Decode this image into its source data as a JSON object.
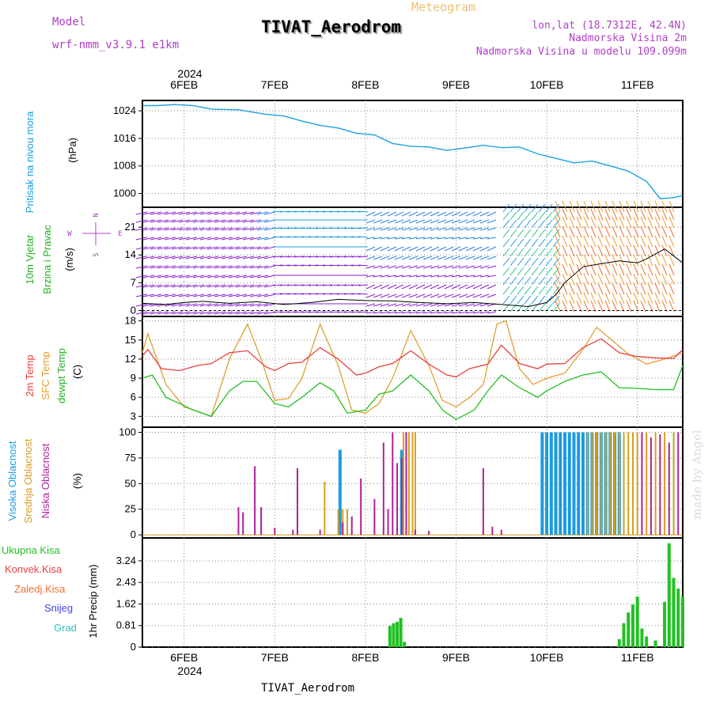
{
  "header": {
    "title": "TIVAT_Aerodrom",
    "subtitle": "Meteogram",
    "model_label": "Model",
    "model_value": "wrf-nmm_v3.9.1  e1km",
    "location": "lon,lat (18.7312E, 42.4N)",
    "altitude": "Nadmorska Visina 2m",
    "model_altitude": "Nadmorska Visina u modelu 109.099m",
    "year": "2024",
    "footer": "TIVAT_Aerodrom",
    "watermark": "made by Angel"
  },
  "colors": {
    "pressure": "#1ba1e2",
    "temp2m": "#e84040",
    "sfc": "#e0a030",
    "dewpt": "#22c022",
    "high_cloud": "#1a9be0",
    "mid_cloud": "#d4a020",
    "low_cloud": "#b0209a",
    "wind_label": "#22b022",
    "legend_purple": "#b040c8"
  },
  "x_axis": {
    "day_labels": [
      "6FEB",
      "7FEB",
      "8FEB",
      "9FEB",
      "10FEB",
      "11FEB"
    ],
    "day_values": [
      1,
      2,
      3,
      4,
      5,
      6
    ],
    "range": [
      0.54,
      6.5
    ]
  },
  "panels": {
    "pressure": {
      "labels": [
        "Pritisak na nivou mora",
        "(hPa)"
      ],
      "ticks": [
        "1024",
        "1016",
        "1008",
        "1000"
      ],
      "tick_values": [
        1024,
        1016,
        1008,
        1000
      ],
      "ylim": [
        996,
        1027
      ]
    },
    "wind": {
      "labels": [
        "10m Vjetar",
        "Brzina i Pravac",
        "(m/s)"
      ],
      "compass": [
        "N",
        "E",
        "S",
        "W"
      ],
      "ticks": [
        "21",
        "14",
        "7",
        "0"
      ],
      "tick_values": [
        21,
        14,
        7,
        0
      ],
      "ylim": [
        -1.5,
        26
      ]
    },
    "temp": {
      "labels": [
        "2m Temp",
        "SFC Temp",
        "dewpt Temp",
        "(C)"
      ],
      "ticks": [
        "18",
        "15",
        "12",
        "9",
        "6",
        "3"
      ],
      "tick_values": [
        18,
        15,
        12,
        9,
        6,
        3
      ],
      "ylim": [
        1.3,
        18.7
      ]
    },
    "cloud": {
      "labels": [
        "Visoka Oblacnost",
        "Srednja Oblacnost",
        "Niska Oblacnost",
        "(%)"
      ],
      "ticks": [
        "100",
        "75",
        "50",
        "25",
        "0"
      ],
      "tick_values": [
        100,
        75,
        50,
        25,
        0
      ],
      "ylim": [
        -3,
        105
      ]
    },
    "precip": {
      "labels": [
        "Ukupna Kisa",
        "Konvek.Kisa",
        "Zaledj.Kisa",
        "Snijeg",
        "Grad",
        "1hr Precip (mm)"
      ],
      "ticks": [
        "3.24",
        "2.43",
        "1.62",
        "0.81",
        "0"
      ],
      "tick_values": [
        3.24,
        2.43,
        1.62,
        0.81,
        0
      ],
      "ylim": [
        0,
        4.1
      ]
    }
  },
  "chart_data": {
    "type": "line",
    "title": "Meteogram",
    "x_unit": "day of February 2024",
    "pressure": {
      "x": [
        0.54,
        0.7,
        0.9,
        1.1,
        1.3,
        1.6,
        1.9,
        2.1,
        2.3,
        2.5,
        2.7,
        2.9,
        3.1,
        3.3,
        3.5,
        3.7,
        3.9,
        4.1,
        4.3,
        4.5,
        4.7,
        4.9,
        5.1,
        5.3,
        5.5,
        5.7,
        5.9,
        6.1,
        6.25,
        6.4,
        6.5
      ],
      "values": [
        1025.5,
        1025.5,
        1025.8,
        1025.5,
        1024.5,
        1024.3,
        1023,
        1022.5,
        1021,
        1019.8,
        1019,
        1017.5,
        1017,
        1014.5,
        1013.7,
        1013.5,
        1012.5,
        1013.2,
        1014,
        1013.3,
        1013.5,
        1011.5,
        1010.2,
        1008.9,
        1009.4,
        1008,
        1006.5,
        1003.5,
        998.5,
        998.8,
        999.4
      ]
    },
    "wind": {
      "x": [
        0.54,
        0.8,
        1.0,
        1.2,
        1.5,
        1.8,
        2.1,
        2.4,
        2.7,
        3.0,
        3.3,
        3.6,
        3.9,
        4.2,
        4.5,
        4.8,
        5.0,
        5.1,
        5.2,
        5.4,
        5.6,
        5.8,
        6.0,
        6.1,
        6.3,
        6.5
      ],
      "values": [
        1.8,
        1.5,
        2.0,
        2.3,
        1.8,
        2.2,
        1.5,
        2.0,
        2.8,
        2.5,
        2.4,
        2.0,
        1.7,
        2.0,
        1.5,
        1.0,
        2.0,
        4.0,
        7.0,
        11.0,
        11.8,
        12.5,
        12.0,
        13.0,
        15.5,
        12.0
      ]
    },
    "temp2m": {
      "x": [
        0.54,
        0.6,
        0.75,
        0.95,
        1.15,
        1.3,
        1.5,
        1.7,
        1.9,
        2.0,
        2.15,
        2.3,
        2.5,
        2.7,
        2.9,
        3.0,
        3.15,
        3.3,
        3.5,
        3.7,
        3.9,
        4.0,
        4.15,
        4.35,
        4.5,
        4.7,
        4.9,
        5.0,
        5.2,
        5.4,
        5.6,
        5.8,
        6.0,
        6.2,
        6.4,
        6.5
      ],
      "values": [
        12.5,
        13.5,
        10.5,
        10.2,
        11,
        11.3,
        13,
        13.3,
        10.8,
        10.2,
        11.3,
        11.5,
        13.8,
        12,
        9.5,
        9.8,
        10.8,
        11.3,
        13.3,
        11.2,
        9.5,
        9.2,
        10.5,
        11.2,
        14.2,
        11.3,
        10.5,
        11.2,
        11.3,
        13.8,
        15.2,
        13.0,
        12.4,
        12.2,
        12.1,
        13.5
      ]
    },
    "sfc": {
      "x": [
        0.54,
        0.6,
        0.8,
        1.0,
        1.15,
        1.3,
        1.5,
        1.7,
        1.85,
        2.0,
        2.15,
        2.3,
        2.5,
        2.7,
        2.85,
        3.0,
        3.15,
        3.3,
        3.5,
        3.7,
        3.85,
        4.0,
        4.15,
        4.3,
        4.45,
        4.55,
        4.7,
        4.85,
        5.0,
        5.2,
        5.4,
        5.55,
        5.7,
        5.9,
        6.1,
        6.3,
        6.5
      ],
      "values": [
        13,
        16,
        8,
        4.5,
        3.8,
        3,
        12,
        17.5,
        12,
        5.5,
        5.8,
        9,
        17.5,
        11,
        4,
        3.5,
        5,
        9,
        16.5,
        11,
        5.5,
        4.5,
        6,
        8,
        17.5,
        18,
        10.5,
        8,
        9,
        9.8,
        13.5,
        17,
        15.2,
        12.8,
        11.2,
        12,
        13
      ]
    },
    "dewpt": {
      "x": [
        0.54,
        0.65,
        0.8,
        0.95,
        1.1,
        1.3,
        1.5,
        1.65,
        1.8,
        2.0,
        2.15,
        2.3,
        2.5,
        2.65,
        2.8,
        3.0,
        3.15,
        3.3,
        3.5,
        3.7,
        3.85,
        4.0,
        4.2,
        4.35,
        4.5,
        4.7,
        4.9,
        5.0,
        5.2,
        5.4,
        5.6,
        5.8,
        6.0,
        6.2,
        6.4,
        6.5
      ],
      "values": [
        9,
        9.5,
        6,
        5,
        4,
        3,
        7,
        8.5,
        8.5,
        5,
        4.5,
        6,
        8.3,
        7,
        3.5,
        4,
        6.5,
        7,
        9.5,
        7,
        4,
        2.5,
        4,
        7,
        9.5,
        7.5,
        6,
        7,
        8.5,
        9.5,
        10,
        7.5,
        7.4,
        7.2,
        7.2,
        11
      ]
    },
    "cloud_low": {
      "x": [
        1.6,
        1.65,
        1.78,
        1.85,
        2.0,
        2.2,
        2.25,
        2.5,
        2.75,
        2.85,
        2.95,
        3.1,
        3.2,
        3.25,
        3.3,
        3.35,
        3.4,
        3.45,
        3.55,
        3.7,
        4.3,
        4.4,
        4.5,
        6.05,
        6.15,
        6.25,
        6.35,
        6.45
      ],
      "values": [
        27,
        22,
        67,
        27,
        7,
        5,
        65,
        5,
        12,
        18,
        55,
        35,
        90,
        25,
        100,
        70,
        75,
        100,
        5,
        4,
        65,
        8,
        5,
        100,
        95,
        98,
        90,
        100
      ]
    },
    "cloud_mid": {
      "x": [
        2.55,
        2.7,
        2.75,
        2.8,
        3.42,
        3.45,
        3.48,
        3.52,
        3.55,
        5.45,
        5.5,
        5.55,
        5.6,
        5.65,
        5.7,
        5.75,
        5.8,
        5.85,
        5.9,
        5.95,
        6.0,
        6.1,
        6.2,
        6.3,
        6.4
      ],
      "values": [
        52,
        25,
        25,
        25,
        100,
        100,
        100,
        100,
        100,
        100,
        100,
        100,
        100,
        100,
        100,
        100,
        100,
        100,
        100,
        100,
        100,
        100,
        100,
        100,
        100
      ]
    },
    "cloud_high": {
      "x": [
        2.72,
        3.4,
        4.95,
        5.0,
        5.05,
        5.1,
        5.15,
        5.2,
        5.25,
        5.3,
        5.35,
        5.4,
        5.45,
        5.5,
        5.55,
        5.6,
        5.65,
        5.7,
        5.75,
        5.8
      ],
      "values": [
        83,
        83,
        100,
        100,
        100,
        100,
        100,
        100,
        100,
        100,
        100,
        100,
        100,
        100,
        100,
        100,
        100,
        100,
        100,
        100
      ]
    },
    "precip_total": {
      "x": [
        3.27,
        3.31,
        3.35,
        3.39,
        3.43,
        5.8,
        5.85,
        5.9,
        5.95,
        6.0,
        6.05,
        6.1,
        6.2,
        6.3,
        6.35,
        6.4,
        6.45,
        6.5
      ],
      "values": [
        0.8,
        0.9,
        0.95,
        1.1,
        0.2,
        0.3,
        0.9,
        1.3,
        1.6,
        1.9,
        0.7,
        0.4,
        0.25,
        1.7,
        3.9,
        2.6,
        2.2,
        1.9
      ]
    }
  }
}
